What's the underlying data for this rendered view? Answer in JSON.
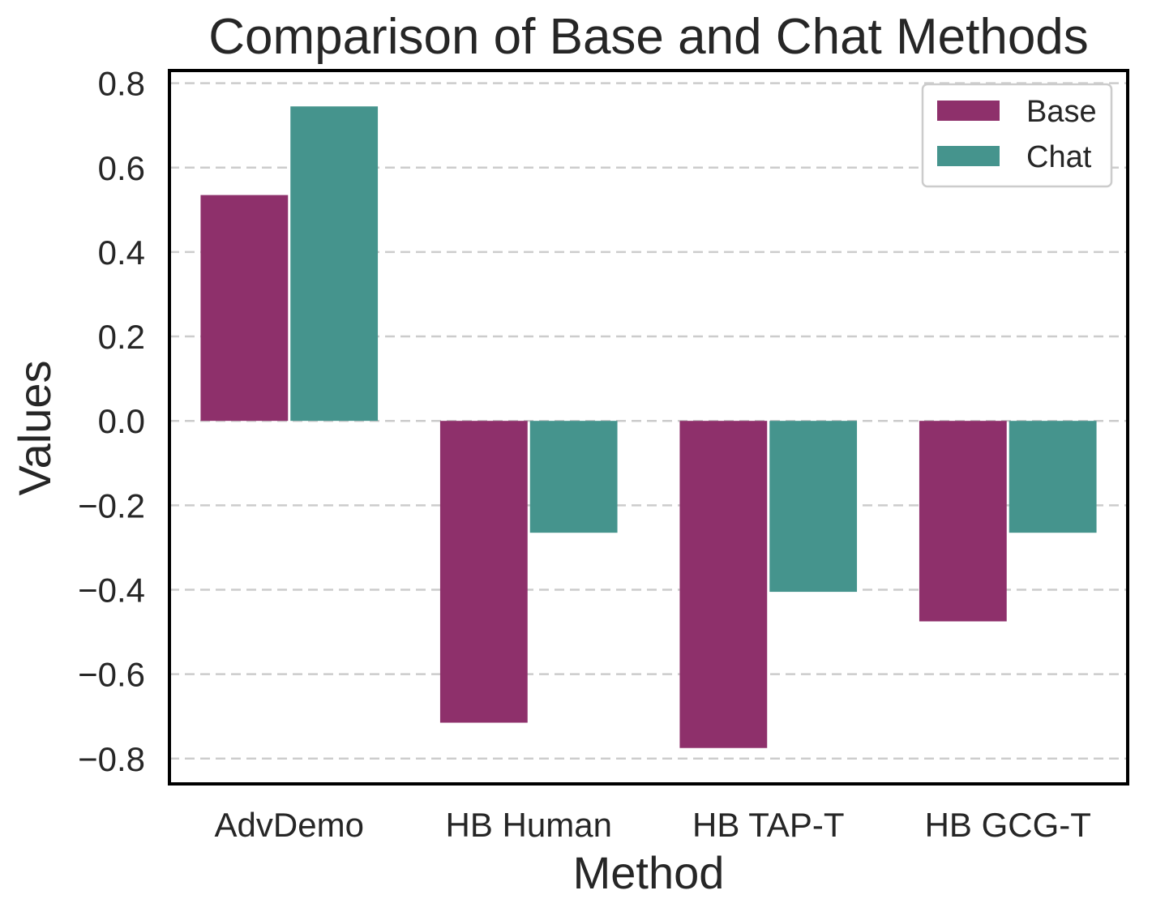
{
  "chart_data": {
    "type": "bar",
    "title": "Comparison of Base and Chat Methods",
    "xlabel": "Method",
    "ylabel": "Values",
    "categories": [
      "AdvDemo",
      "HB Human",
      "HB TAP-T",
      "HB GCG-T"
    ],
    "series": [
      {
        "name": "Base",
        "values": [
          0.535,
          -0.715,
          -0.775,
          -0.475
        ],
        "color": "#8e306b"
      },
      {
        "name": "Chat",
        "values": [
          0.745,
          -0.265,
          -0.405,
          -0.265
        ],
        "color": "#45948d"
      }
    ],
    "ylim": [
      -0.86,
      0.83
    ],
    "yticks": [
      0.8,
      0.6,
      0.4,
      0.2,
      0.0,
      -0.2,
      -0.4,
      -0.6,
      -0.8
    ],
    "ytick_labels": [
      "0.8",
      "0.6",
      "0.4",
      "0.2",
      "0.0",
      "−0.2",
      "−0.4",
      "−0.6",
      "−0.8"
    ],
    "grid": "horizontal dashed",
    "legend_position": "top-right"
  }
}
